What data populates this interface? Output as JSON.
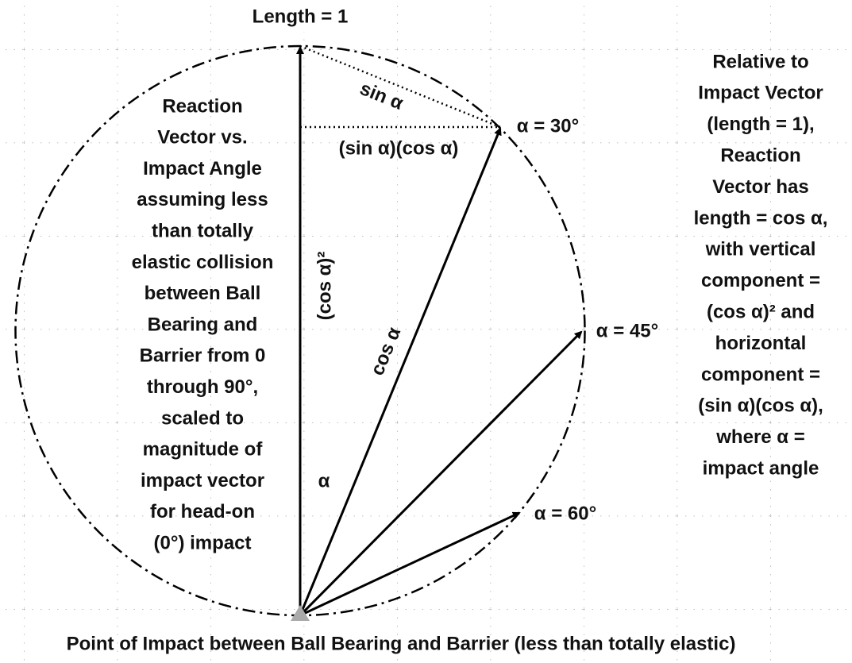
{
  "title": "Length = 1",
  "left_text": [
    "Reaction",
    "Vector vs.",
    "Impact Angle",
    "assuming less",
    "than totally",
    "elastic collision",
    "between Ball",
    "Bearing and",
    "Barrier from 0",
    "through 90°,",
    "scaled to",
    "magnitude of",
    "impact vector",
    "for head-on",
    "(0°) impact"
  ],
  "right_text": [
    "Relative to",
    "Impact Vector",
    "(length = 1),",
    "Reaction",
    "Vector has",
    "length = cos α,",
    "with vertical",
    "component =",
    "(cos α)² and",
    "horizontal",
    "component =",
    "(sin α)(cos α),",
    "where α =",
    "impact angle"
  ],
  "labels": {
    "sin": "sin α",
    "sin_cos": "(sin α)(cos α)",
    "cos_sq": "(cos α)²",
    "cos": "cos α",
    "alpha": "α",
    "a30": "α = 30°",
    "a45": "α = 45°",
    "a60": "α = 60°"
  },
  "caption": "Point of Impact between Ball Bearing and Barrier (less than totally elastic)"
}
